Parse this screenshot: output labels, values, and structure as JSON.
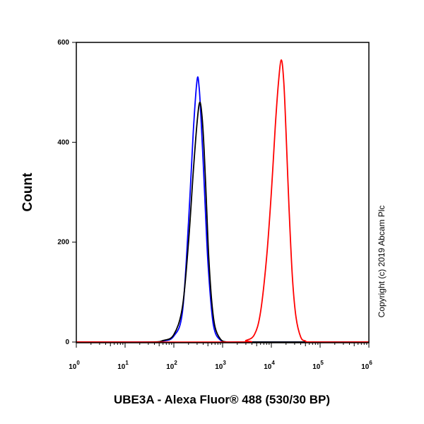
{
  "chart_data": {
    "type": "line",
    "title": "",
    "xlabel": "UBE3A - Alexa Fluor® 488 (530/30 BP)",
    "ylabel": "Count",
    "x_scale": "log",
    "xlim": [
      1,
      1000000
    ],
    "ylim": [
      0,
      600
    ],
    "x_ticks": [
      {
        "value": 1,
        "base": "10",
        "exp": "0"
      },
      {
        "value": 10,
        "base": "10",
        "exp": "1"
      },
      {
        "value": 100,
        "base": "10",
        "exp": "2"
      },
      {
        "value": 1000,
        "base": "10",
        "exp": "3"
      },
      {
        "value": 10000,
        "base": "10",
        "exp": "4"
      },
      {
        "value": 100000,
        "base": "10",
        "exp": "5"
      },
      {
        "value": 1000000,
        "base": "10",
        "exp": "6"
      }
    ],
    "y_ticks": [
      {
        "value": 0,
        "label": "0"
      },
      {
        "value": 200,
        "label": "200"
      },
      {
        "value": 400,
        "label": "400"
      },
      {
        "value": 600,
        "label": "600"
      }
    ],
    "copyright": "Copyright (c) 2019 Abcam Plc",
    "legend": false,
    "grid": false,
    "series": [
      {
        "color": "#0000ff",
        "x": [
          1,
          30,
          60,
          100,
          150,
          200,
          250,
          300,
          330,
          360,
          400,
          450,
          500,
          600,
          700,
          900,
          1200,
          2000,
          10000,
          1000000
        ],
        "y": [
          0,
          0,
          2,
          12,
          60,
          240,
          420,
          525,
          510,
          450,
          360,
          250,
          160,
          60,
          20,
          4,
          0,
          0,
          0,
          0
        ]
      },
      {
        "color": "#000000",
        "x": [
          1,
          30,
          60,
          100,
          150,
          200,
          250,
          300,
          340,
          380,
          420,
          470,
          520,
          600,
          700,
          900,
          1200,
          2000,
          10000,
          1000000
        ],
        "y": [
          0,
          0,
          3,
          15,
          70,
          200,
          340,
          440,
          480,
          450,
          380,
          270,
          170,
          80,
          30,
          6,
          0,
          0,
          0,
          0
        ]
      },
      {
        "color": "#ff0000",
        "x": [
          1,
          2000,
          3000,
          4500,
          6000,
          8000,
          10000,
          12000,
          14000,
          16000,
          18000,
          20000,
          23000,
          27000,
          32000,
          40000,
          50000,
          70000,
          1000000
        ],
        "y": [
          0,
          0,
          3,
          15,
          60,
          170,
          300,
          430,
          520,
          565,
          520,
          420,
          270,
          130,
          50,
          10,
          2,
          0,
          0
        ]
      }
    ]
  }
}
